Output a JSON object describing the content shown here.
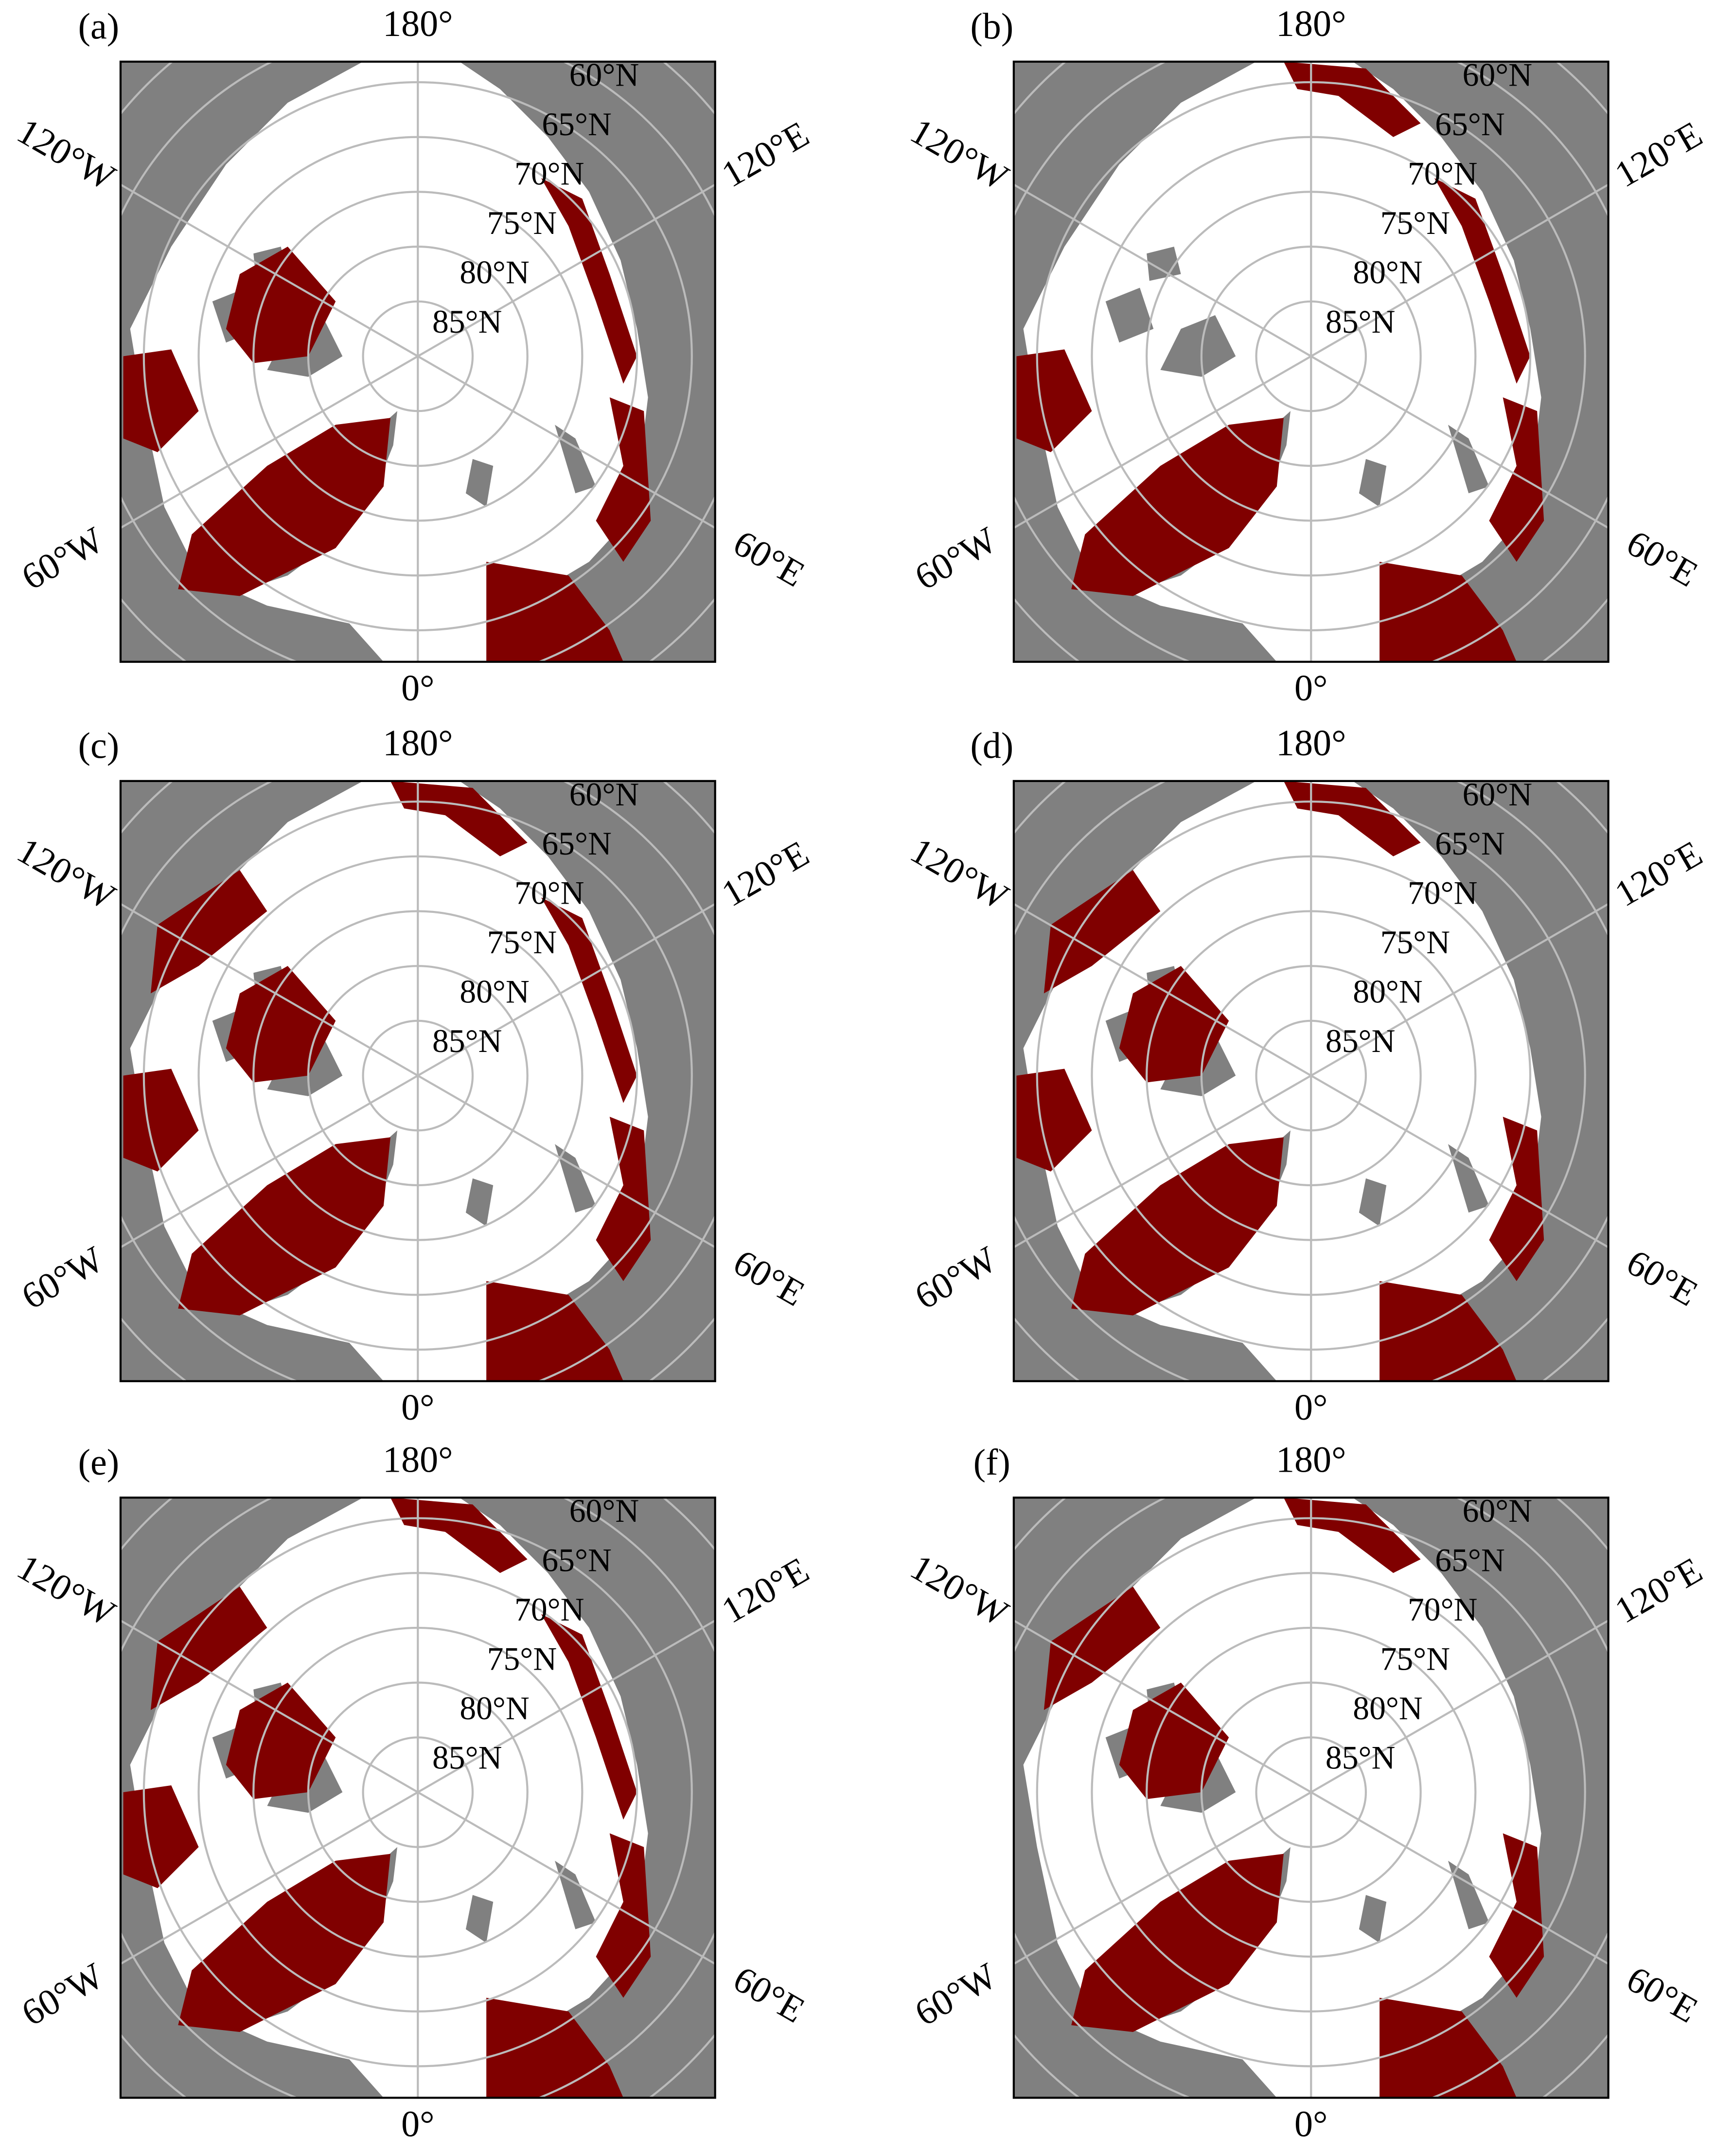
{
  "panels": [
    "(a)",
    "(b)",
    "(c)",
    "(d)",
    "(e)",
    "(f)"
  ],
  "lon_labels": [
    "180°",
    "120°E",
    "60°E",
    "0°",
    "60°W",
    "120°W"
  ],
  "lat_labels": [
    "60°N",
    "65°N",
    "70°N",
    "75°N",
    "80°N",
    "85°N"
  ]
}
